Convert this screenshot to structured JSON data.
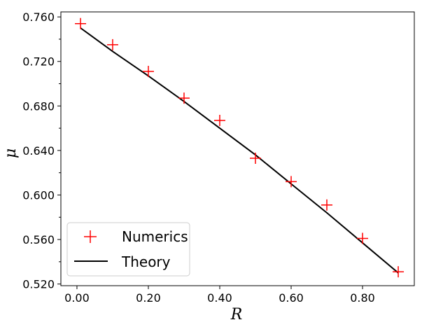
{
  "chart_data": {
    "type": "line",
    "xlabel": "R",
    "ylabel": "μ",
    "xlim": [
      -0.045,
      0.945
    ],
    "ylim": [
      0.5185,
      0.7645
    ],
    "x_ticks": [
      0.0,
      0.2,
      0.4,
      0.6,
      0.8
    ],
    "x_tick_labels": [
      "0.00",
      "0.20",
      "0.40",
      "0.60",
      "0.80"
    ],
    "y_ticks": [
      0.52,
      0.56,
      0.6,
      0.64,
      0.68,
      0.72,
      0.76
    ],
    "y_tick_labels": [
      "0.520",
      "0.560",
      "0.600",
      "0.640",
      "0.680",
      "0.720",
      "0.760"
    ],
    "grid": false,
    "legend_position": "lower-left",
    "series": [
      {
        "name": "Numerics",
        "style": "marker-plus",
        "color": "#ff0000",
        "x": [
          0.01,
          0.1,
          0.2,
          0.3,
          0.4,
          0.5,
          0.6,
          0.7,
          0.8,
          0.9
        ],
        "y": [
          0.754,
          0.735,
          0.711,
          0.687,
          0.667,
          0.633,
          0.612,
          0.591,
          0.561,
          0.531
        ]
      },
      {
        "name": "Theory",
        "style": "line",
        "color": "#000000",
        "x": [
          0.01,
          0.1,
          0.2,
          0.3,
          0.4,
          0.5,
          0.6,
          0.7,
          0.8,
          0.9
        ],
        "y": [
          0.75,
          0.729,
          0.707,
          0.684,
          0.66,
          0.636,
          0.61,
          0.584,
          0.557,
          0.53
        ]
      }
    ]
  }
}
